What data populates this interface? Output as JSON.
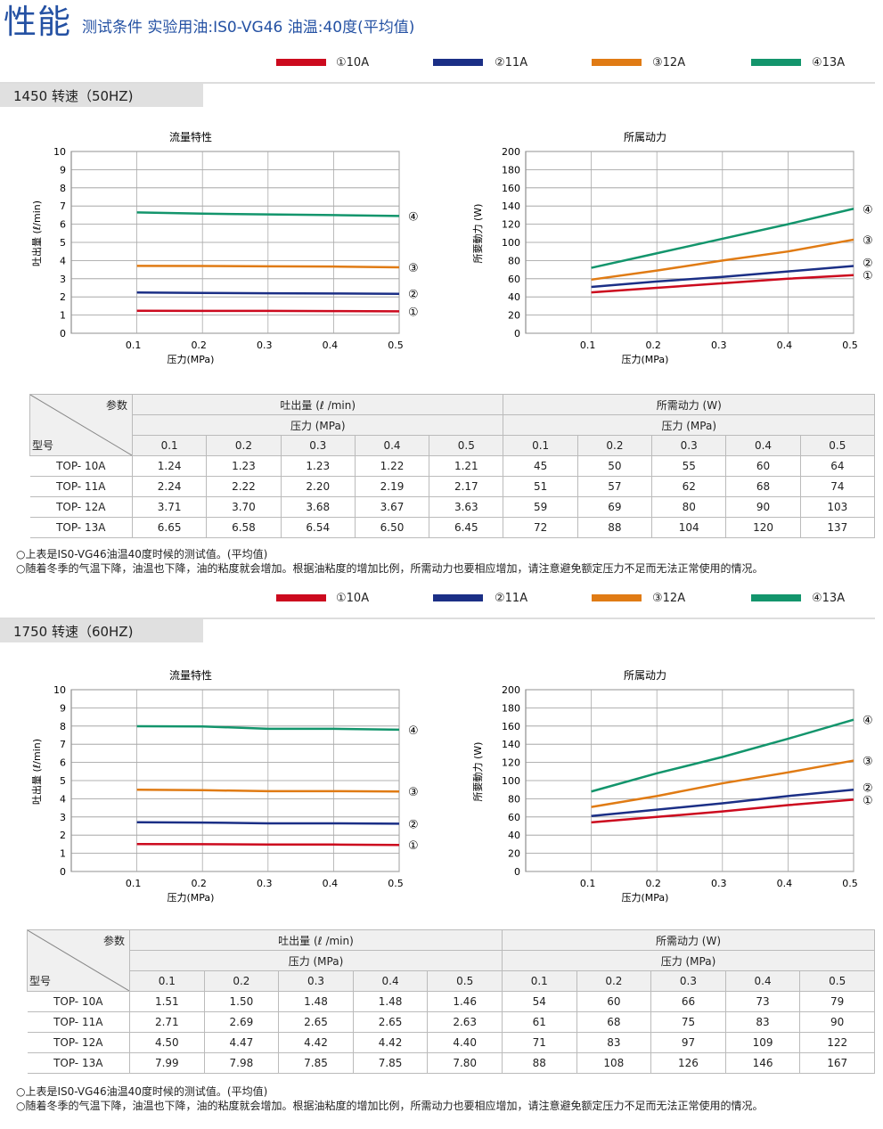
{
  "header": {
    "title": "性能",
    "subtitle": "测试条件 实验用油:IS0-VG46 油温:40度(平均值)"
  },
  "legend": [
    {
      "label": "①10A",
      "color": "#cc0a1e"
    },
    {
      "label": "②11A",
      "color": "#1b2f86"
    },
    {
      "label": "③12A",
      "color": "#e07b14"
    },
    {
      "label": "④13A",
      "color": "#13956c"
    }
  ],
  "markers": [
    "①",
    "②",
    "③",
    "④"
  ],
  "sections": [
    {
      "title": "1450 转速（50HZ)",
      "table": {
        "param_label": "参数",
        "model_label": "型号",
        "flow_header": "吐出量 (ℓ /min)",
        "power_header": "所需动力 (W)",
        "pressure_header": "压力 (MPa)",
        "pressures": [
          "0.1",
          "0.2",
          "0.3",
          "0.4",
          "0.5"
        ],
        "rows": [
          {
            "model": "TOP- 10A",
            "flow": [
              "1.24",
              "1.23",
              "1.23",
              "1.22",
              "1.21"
            ],
            "power": [
              "45",
              "50",
              "55",
              "60",
              "64"
            ]
          },
          {
            "model": "TOP- 11A",
            "flow": [
              "2.24",
              "2.22",
              "2.20",
              "2.19",
              "2.17"
            ],
            "power": [
              "51",
              "57",
              "62",
              "68",
              "74"
            ]
          },
          {
            "model": "TOP- 12A",
            "flow": [
              "3.71",
              "3.70",
              "3.68",
              "3.67",
              "3.63"
            ],
            "power": [
              "59",
              "69",
              "80",
              "90",
              "103"
            ]
          },
          {
            "model": "TOP- 13A",
            "flow": [
              "6.65",
              "6.58",
              "6.54",
              "6.50",
              "6.45"
            ],
            "power": [
              "72",
              "88",
              "104",
              "120",
              "137"
            ]
          }
        ]
      },
      "notes": [
        "○上表是IS0-VG46油温40度时候的测试值。(平均值)",
        "○随着冬季的气温下降，油温也下降，油的粘度就会增加。根据油粘度的增加比例，所需动力也要相应增加，请注意避免额定压力不足而无法正常使用的情况。"
      ]
    },
    {
      "title": "1750 转速（60HZ)",
      "table": {
        "param_label": "参数",
        "model_label": "型号",
        "flow_header": "吐出量 (ℓ /min)",
        "power_header": "所需动力 (W)",
        "pressure_header": "压力 (MPa)",
        "pressures": [
          "0.1",
          "0.2",
          "0.3",
          "0.4",
          "0.5"
        ],
        "rows": [
          {
            "model": "TOP- 10A",
            "flow": [
              "1.51",
              "1.50",
              "1.48",
              "1.48",
              "1.46"
            ],
            "power": [
              "54",
              "60",
              "66",
              "73",
              "79"
            ]
          },
          {
            "model": "TOP- 11A",
            "flow": [
              "2.71",
              "2.69",
              "2.65",
              "2.65",
              "2.63"
            ],
            "power": [
              "61",
              "68",
              "75",
              "83",
              "90"
            ]
          },
          {
            "model": "TOP- 12A",
            "flow": [
              "4.50",
              "4.47",
              "4.42",
              "4.42",
              "4.40"
            ],
            "power": [
              "71",
              "83",
              "97",
              "109",
              "122"
            ]
          },
          {
            "model": "TOP- 13A",
            "flow": [
              "7.99",
              "7.98",
              "7.85",
              "7.85",
              "7.80"
            ],
            "power": [
              "88",
              "108",
              "126",
              "146",
              "167"
            ]
          }
        ]
      },
      "notes": [
        "○上表是IS0-VG46油温40度时候的测试值。(平均值)",
        "○随着冬季的气温下降，油温也下降，油的粘度就会增加。根据油粘度的增加比例，所需动力也要相应增加，请注意避免额定压力不足而无法正常使用的情况。"
      ]
    }
  ],
  "chart_data": [
    {
      "type": "line",
      "title": "流量特性",
      "xlabel": "压力(MPa)",
      "ylabel": "吐出量 (ℓ/min)",
      "x": [
        0.1,
        0.2,
        0.3,
        0.4,
        0.5
      ],
      "xticks": [
        "0.1",
        "0.2",
        "0.3",
        "0.4",
        "0.5"
      ],
      "xlim": [
        0,
        0.5
      ],
      "ylim": [
        0,
        10
      ],
      "yticks": [
        "0",
        "1",
        "2",
        "3",
        "4",
        "5",
        "6",
        "7",
        "8",
        "9",
        "10"
      ],
      "grid": true,
      "series": [
        {
          "name": "①10A",
          "values": [
            1.24,
            1.23,
            1.23,
            1.22,
            1.21
          ]
        },
        {
          "name": "②11A",
          "values": [
            2.24,
            2.22,
            2.2,
            2.19,
            2.17
          ]
        },
        {
          "name": "③12A",
          "values": [
            3.71,
            3.7,
            3.68,
            3.67,
            3.63
          ]
        },
        {
          "name": "④13A",
          "values": [
            6.65,
            6.58,
            6.54,
            6.5,
            6.45
          ]
        }
      ]
    },
    {
      "type": "line",
      "title": "所属动力",
      "xlabel": "压力(MPa)",
      "ylabel": "所要動力 (W)",
      "x": [
        0.1,
        0.2,
        0.3,
        0.4,
        0.5
      ],
      "xticks": [
        "0.1",
        "0.2",
        "0.3",
        "0.4",
        "0.5"
      ],
      "xlim": [
        0,
        0.5
      ],
      "ylim": [
        0,
        200
      ],
      "yticks": [
        "0",
        "20",
        "40",
        "60",
        "80",
        "100",
        "120",
        "140",
        "160",
        "180",
        "200"
      ],
      "grid": true,
      "series": [
        {
          "name": "①10A",
          "values": [
            45,
            50,
            55,
            60,
            64
          ]
        },
        {
          "name": "②11A",
          "values": [
            51,
            57,
            62,
            68,
            74
          ]
        },
        {
          "name": "③12A",
          "values": [
            59,
            69,
            80,
            90,
            103
          ]
        },
        {
          "name": "④13A",
          "values": [
            72,
            88,
            104,
            120,
            137
          ]
        }
      ]
    },
    {
      "type": "line",
      "title": "流量特性",
      "xlabel": "压力(MPa)",
      "ylabel": "吐出量 (ℓ/min)",
      "x": [
        0.1,
        0.2,
        0.3,
        0.4,
        0.5
      ],
      "xticks": [
        "0.1",
        "0.2",
        "0.3",
        "0.4",
        "0.5"
      ],
      "xlim": [
        0,
        0.5
      ],
      "ylim": [
        0,
        10
      ],
      "yticks": [
        "0",
        "1",
        "2",
        "3",
        "4",
        "5",
        "6",
        "7",
        "8",
        "9",
        "10"
      ],
      "grid": true,
      "series": [
        {
          "name": "①10A",
          "values": [
            1.51,
            1.5,
            1.48,
            1.48,
            1.46
          ]
        },
        {
          "name": "②11A",
          "values": [
            2.71,
            2.69,
            2.65,
            2.65,
            2.63
          ]
        },
        {
          "name": "③12A",
          "values": [
            4.5,
            4.47,
            4.42,
            4.42,
            4.4
          ]
        },
        {
          "name": "④13A",
          "values": [
            7.99,
            7.98,
            7.85,
            7.85,
            7.8
          ]
        }
      ]
    },
    {
      "type": "line",
      "title": "所属动力",
      "xlabel": "压力(MPa)",
      "ylabel": "所要動力 (W)",
      "x": [
        0.1,
        0.2,
        0.3,
        0.4,
        0.5
      ],
      "xticks": [
        "0.1",
        "0.2",
        "0.3",
        "0.4",
        "0.5"
      ],
      "xlim": [
        0,
        0.5
      ],
      "ylim": [
        0,
        200
      ],
      "yticks": [
        "0",
        "20",
        "40",
        "60",
        "80",
        "100",
        "120",
        "140",
        "160",
        "180",
        "200"
      ],
      "grid": true,
      "series": [
        {
          "name": "①10A",
          "values": [
            54,
            60,
            66,
            73,
            79
          ]
        },
        {
          "name": "②11A",
          "values": [
            61,
            68,
            75,
            83,
            90
          ]
        },
        {
          "name": "③12A",
          "values": [
            71,
            83,
            97,
            109,
            122
          ]
        },
        {
          "name": "④13A",
          "values": [
            88,
            108,
            126,
            146,
            167
          ]
        }
      ]
    }
  ]
}
